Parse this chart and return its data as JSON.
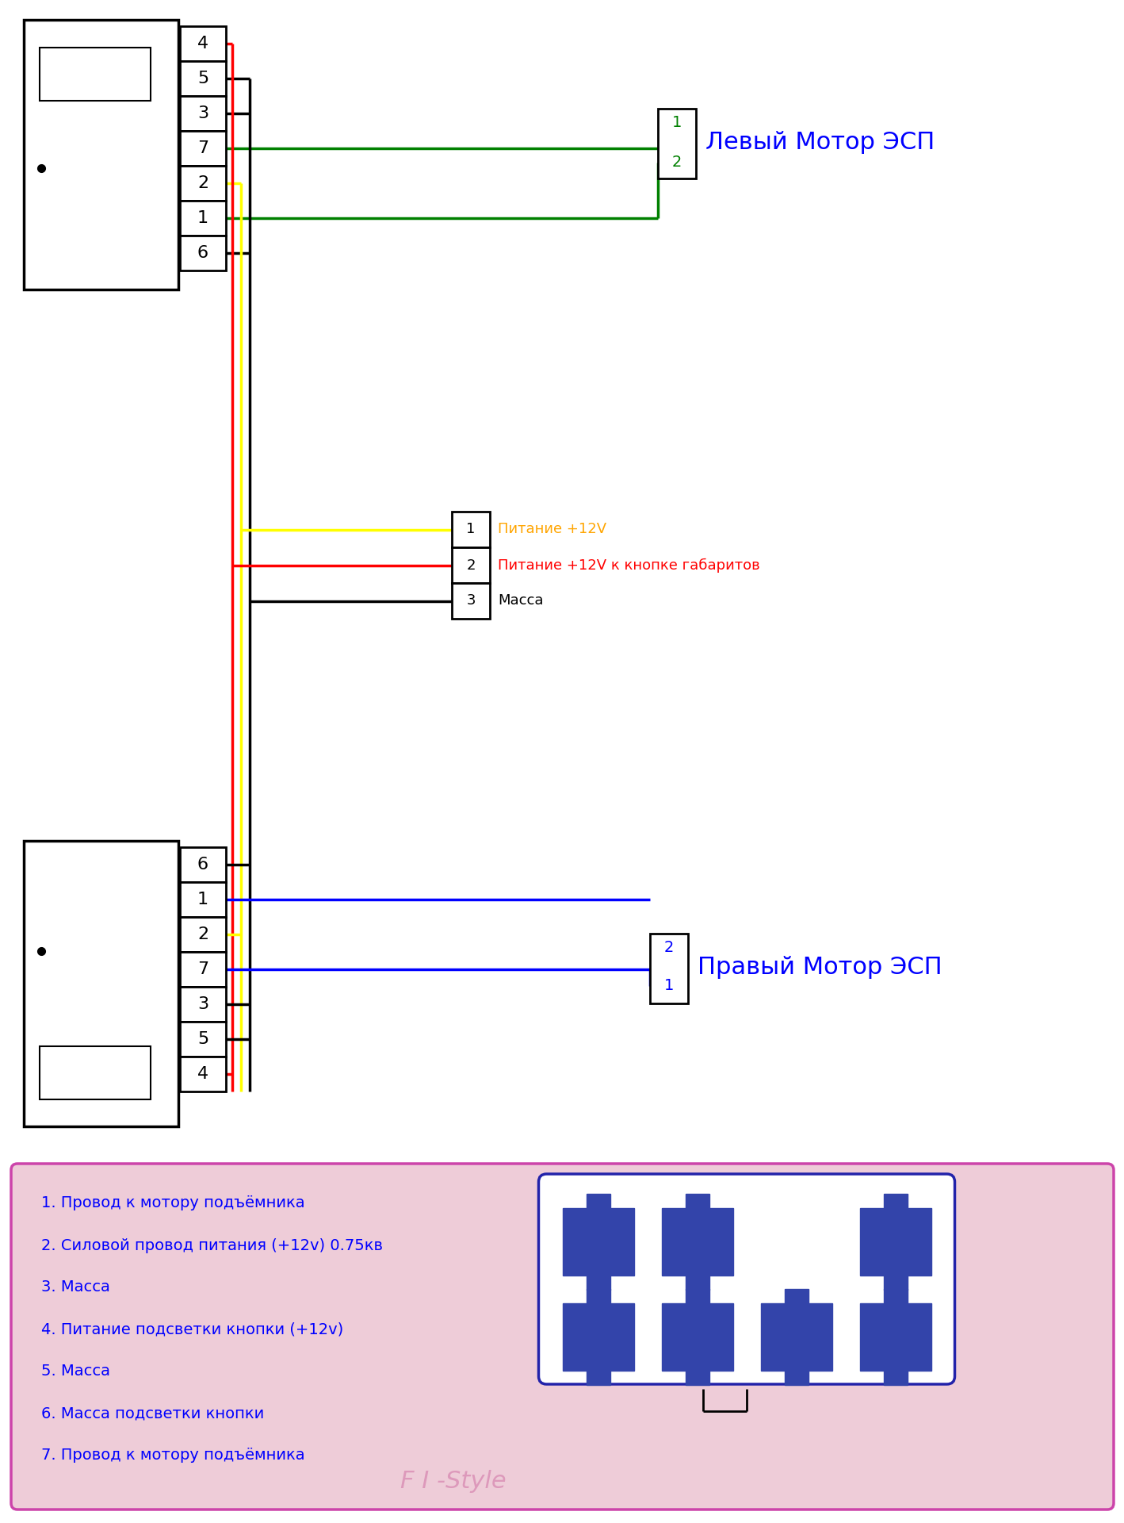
{
  "bg_color": "#ffffff",
  "legend_bg": "#eeccd8",
  "legend_border": "#cc44aa",
  "legend_items": [
    "1. Провод к мотору подъёмника",
    "2. Силовой провод питания (+12v) 0.75кв",
    "3. Масса",
    "4. Питание подсветки кнопки (+12v)",
    "5. Масса",
    "6. Масса подсветки кнопки",
    "7. Провод к мотору подъёмника"
  ],
  "watermark": "F I -Style",
  "connector_top_pins": [
    "4",
    "5",
    "3",
    "7",
    "2",
    "1",
    "6"
  ],
  "connector_bot_pins": [
    "6",
    "1",
    "2",
    "7",
    "3",
    "5",
    "4"
  ],
  "mid_connector_pins": [
    "1",
    "2",
    "3"
  ],
  "mid_connector_labels": [
    "Питание +12V",
    "Питание +12V к кнопке габаритов",
    "Масса"
  ],
  "mid_connector_label_colors": [
    "#FFA500",
    "#FF0000",
    "#000000"
  ],
  "left_motor_label": "Левый Мотор ЭСП",
  "right_motor_label": "Правый Мотор ЭСП",
  "conn_pin_colors_top": [
    "red",
    "black",
    "black",
    "green",
    "yellow",
    "green",
    "black"
  ],
  "conn_pin_colors_bot": [
    "black",
    "blue",
    "yellow",
    "blue",
    "black",
    "black",
    "red"
  ]
}
